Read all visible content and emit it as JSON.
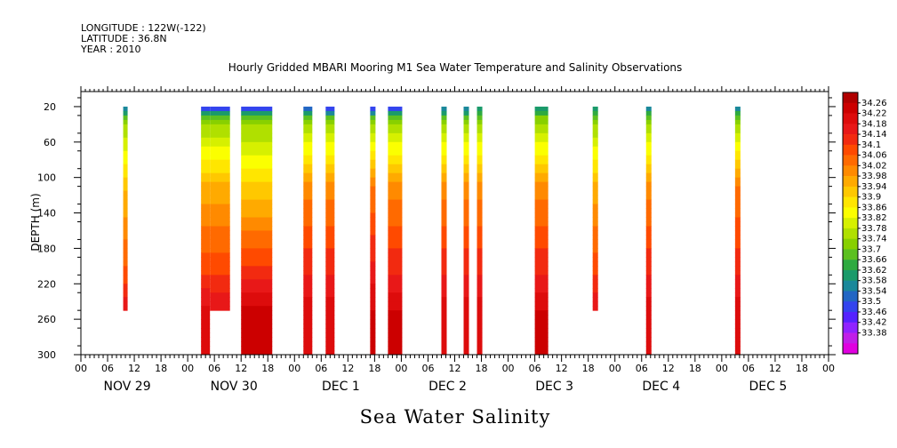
{
  "header": {
    "longitude": "LONGITUDE : 122W(-122)",
    "latitude": "LATITUDE : 36.8N",
    "year": "YEAR : 2010"
  },
  "chart_data": {
    "type": "heatmap",
    "title": "Hourly Gridded MBARI Mooring M1 Sea Water Temperature and Salinity Observations",
    "xlabel": "Sea Water Salinity",
    "ylabel": "DEPTH (m)",
    "xlim_hours": [
      0,
      168
    ],
    "ylim": [
      300,
      0
    ],
    "y_ticks": [
      20,
      60,
      100,
      140,
      180,
      220,
      260,
      300
    ],
    "x_tick_labels": [
      "00",
      "06",
      "12",
      "18",
      "00",
      "06",
      "12",
      "18",
      "00",
      "06",
      "12",
      "18",
      "00",
      "06",
      "12",
      "18",
      "00",
      "06",
      "12",
      "18",
      "00",
      "06",
      "12",
      "18",
      "00",
      "06",
      "12",
      "18",
      "00"
    ],
    "day_labels": [
      "NOV 29",
      "NOV 30",
      "DEC  1",
      "DEC  2",
      "DEC  3",
      "DEC  4",
      "DEC  5"
    ],
    "colorbar_levels": [
      "34.26",
      "34.22",
      "34.18",
      "34.14",
      "34.1",
      "34.06",
      "34.02",
      "33.98",
      "33.94",
      "33.9",
      "33.86",
      "33.82",
      "33.78",
      "33.74",
      "33.7",
      "33.66",
      "33.62",
      "33.58",
      "33.54",
      "33.5",
      "33.46",
      "33.42",
      "33.38"
    ],
    "colorbar_colors": [
      "#b00000",
      "#cc0000",
      "#dd0c0c",
      "#e81818",
      "#f22a10",
      "#ff4a00",
      "#ff6a00",
      "#ff8a00",
      "#ffaa00",
      "#ffc800",
      "#ffe600",
      "#fbff00",
      "#d6f000",
      "#b0e000",
      "#88d000",
      "#5cc020",
      "#2eaa40",
      "#1a9a6a",
      "#1a889a",
      "#2266c4",
      "#3344ee",
      "#5522ff",
      "#9022ff",
      "#c01ee8",
      "#e000e0"
    ],
    "data_columns": [
      {
        "start_hour": 9.5,
        "end_hour": 10.5,
        "top_depth": 20,
        "bottom_depth": 250,
        "surface": 33.55,
        "mid": 33.94,
        "deep": 34.06,
        "bottom": 34.18
      },
      {
        "start_hour": 27,
        "end_hour": 29,
        "top_depth": 20,
        "bottom_depth": 300,
        "surface": 33.5,
        "mid": 33.96,
        "deep": 34.08,
        "bottom": 34.2
      },
      {
        "start_hour": 29,
        "end_hour": 33.5,
        "top_depth": 20,
        "bottom_depth": 250,
        "surface": 33.5,
        "mid": 33.96,
        "deep": 34.08,
        "bottom": 34.18
      },
      {
        "start_hour": 36,
        "end_hour": 43,
        "top_depth": 20,
        "bottom_depth": 300,
        "surface": 33.5,
        "mid": 33.92,
        "deep": 34.1,
        "bottom": 34.24
      },
      {
        "start_hour": 50,
        "end_hour": 52,
        "top_depth": 20,
        "bottom_depth": 300,
        "surface": 33.52,
        "mid": 34.0,
        "deep": 34.12,
        "bottom": 34.2
      },
      {
        "start_hour": 55,
        "end_hour": 57,
        "top_depth": 20,
        "bottom_depth": 300,
        "surface": 33.46,
        "mid": 34.0,
        "deep": 34.12,
        "bottom": 34.2
      },
      {
        "start_hour": 65,
        "end_hour": 66.2,
        "top_depth": 20,
        "bottom_depth": 300,
        "surface": 33.48,
        "mid": 34.02,
        "deep": 34.14,
        "bottom": 34.22
      },
      {
        "start_hour": 69,
        "end_hour": 72.2,
        "top_depth": 20,
        "bottom_depth": 300,
        "surface": 33.5,
        "mid": 34.0,
        "deep": 34.12,
        "bottom": 34.22
      },
      {
        "start_hour": 81,
        "end_hour": 82.2,
        "top_depth": 20,
        "bottom_depth": 300,
        "surface": 33.55,
        "mid": 34.0,
        "deep": 34.12,
        "bottom": 34.2
      },
      {
        "start_hour": 86,
        "end_hour": 87.2,
        "top_depth": 20,
        "bottom_depth": 300,
        "surface": 33.55,
        "mid": 34.0,
        "deep": 34.12,
        "bottom": 34.2
      },
      {
        "start_hour": 89,
        "end_hour": 90.2,
        "top_depth": 20,
        "bottom_depth": 300,
        "surface": 33.6,
        "mid": 34.0,
        "deep": 34.12,
        "bottom": 34.2
      },
      {
        "start_hour": 102,
        "end_hour": 105,
        "top_depth": 20,
        "bottom_depth": 300,
        "surface": 33.62,
        "mid": 34.0,
        "deep": 34.12,
        "bottom": 34.22
      },
      {
        "start_hour": 115,
        "end_hour": 116.2,
        "top_depth": 20,
        "bottom_depth": 250,
        "surface": 33.6,
        "mid": 33.96,
        "deep": 34.08,
        "bottom": 34.18
      },
      {
        "start_hour": 127,
        "end_hour": 128.2,
        "top_depth": 20,
        "bottom_depth": 300,
        "surface": 33.58,
        "mid": 34.0,
        "deep": 34.12,
        "bottom": 34.2
      },
      {
        "start_hour": 147,
        "end_hour": 148.2,
        "top_depth": 20,
        "bottom_depth": 300,
        "surface": 33.58,
        "mid": 34.02,
        "deep": 34.12,
        "bottom": 34.2
      }
    ]
  }
}
